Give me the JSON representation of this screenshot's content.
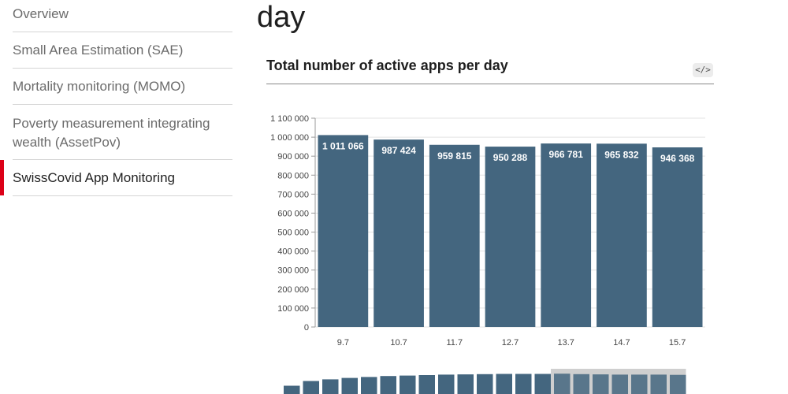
{
  "sidebar": {
    "items": [
      {
        "label": "Overview"
      },
      {
        "label": "Small Area Estimation (SAE)"
      },
      {
        "label": "Mortality monitoring (MOMO)"
      },
      {
        "label": "Poverty measurement integrating wealth (AssetPov)"
      },
      {
        "label": "SwissCovid App Monitoring",
        "active": true
      }
    ]
  },
  "main": {
    "page_title": "day",
    "chart_title": "Total number of active apps per day",
    "embed_icon": "</>"
  },
  "colors": {
    "bar": "#44667f",
    "active_marker": "#dc0018",
    "overview_bar": "#44667f",
    "overview_highlight": "#cfcfcf"
  },
  "chart_data": {
    "type": "bar",
    "title": "Total number of active apps per day",
    "xlabel": "",
    "ylabel": "",
    "categories": [
      "9.7",
      "10.7",
      "11.7",
      "12.7",
      "13.7",
      "14.7",
      "15.7"
    ],
    "values": [
      1011066,
      987424,
      959815,
      950288,
      966781,
      965832,
      946368
    ],
    "value_labels": [
      "1 011 066",
      "987 424",
      "959 815",
      "950 288",
      "966 781",
      "965 832",
      "946 368"
    ],
    "ylim": [
      0,
      1100000
    ],
    "yticks": [
      0,
      100000,
      200000,
      300000,
      400000,
      500000,
      600000,
      700000,
      800000,
      900000,
      1000000,
      1100000
    ],
    "ytick_labels": [
      "0",
      "100 000",
      "200 000",
      "300 000",
      "400 000",
      "500 000",
      "600 000",
      "700 000",
      "800 000",
      "900 000",
      "1 000 000",
      "1 100 000"
    ],
    "grid": true,
    "overview": {
      "type": "bar",
      "values": [
        0.35,
        0.55,
        0.62,
        0.68,
        0.72,
        0.76,
        0.78,
        0.8,
        0.82,
        0.83,
        0.84,
        0.85,
        0.85,
        0.85,
        0.86,
        0.84,
        0.83,
        0.82,
        0.82,
        0.82,
        0.81
      ],
      "selected_range": [
        14,
        20
      ]
    }
  }
}
